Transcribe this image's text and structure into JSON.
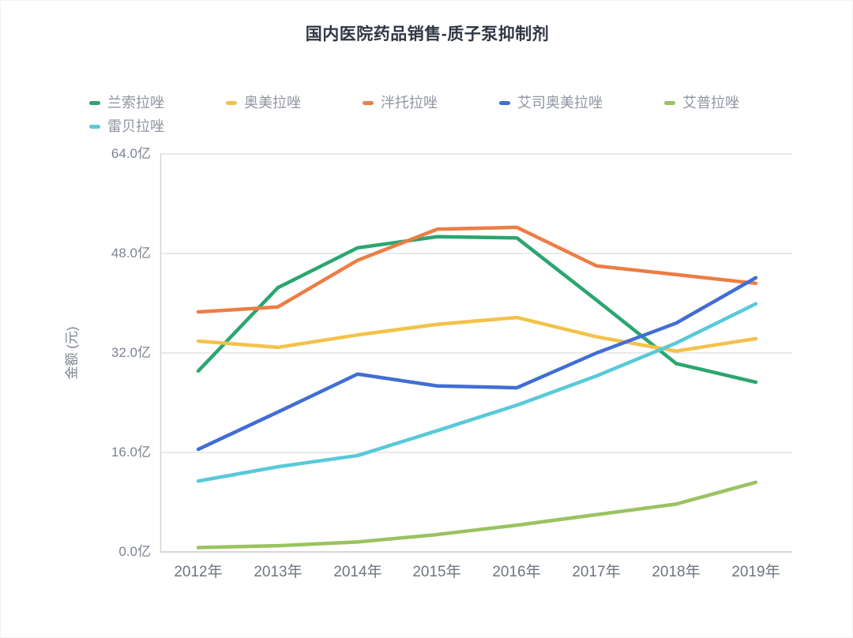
{
  "title": "国内医院药品销售-质子泵抑制剂",
  "chart_data": {
    "type": "line",
    "title": "国内医院药品销售-质子泵抑制剂",
    "xlabel": "",
    "ylabel": "金额 (元)",
    "unit": "亿元",
    "ylim": [
      0,
      64
    ],
    "ytick_values": [
      0,
      16,
      32,
      48,
      64
    ],
    "ytick_labels": [
      "0.0亿",
      "16.0亿",
      "32.0亿",
      "48.0亿",
      "64.0亿"
    ],
    "grid": "horizontal",
    "legend_position": "top-left",
    "categories": [
      "2012年",
      "2013年",
      "2014年",
      "2015年",
      "2016年",
      "2017年",
      "2018年",
      "2019年"
    ],
    "series": [
      {
        "name": "兰索拉唑",
        "color": "#2aa670",
        "values": [
          29.1,
          42.5,
          48.9,
          50.7,
          50.5,
          40.5,
          30.3,
          27.3
        ]
      },
      {
        "name": "奥美拉唑",
        "color": "#f2c24a",
        "values": [
          33.9,
          32.9,
          34.9,
          36.6,
          37.7,
          34.6,
          32.3,
          34.3
        ]
      },
      {
        "name": "泮托拉唑",
        "color": "#ec7d45",
        "values": [
          38.6,
          39.4,
          46.9,
          51.9,
          52.2,
          46.0,
          44.6,
          43.2
        ]
      },
      {
        "name": "艾司奥美拉唑",
        "color": "#416dd5",
        "values": [
          16.5,
          22.5,
          28.6,
          26.7,
          26.4,
          32.0,
          36.8,
          44.1
        ]
      },
      {
        "name": "艾普拉唑",
        "color": "#99c360",
        "values": [
          0.7,
          1.0,
          1.6,
          2.8,
          4.3,
          6.0,
          7.7,
          11.2
        ]
      },
      {
        "name": "雷贝拉唑",
        "color": "#58c9d9",
        "values": [
          11.4,
          13.7,
          15.5,
          19.5,
          23.6,
          28.3,
          33.6,
          39.9
        ]
      }
    ],
    "colors": {
      "grid_line": "#dcdee1",
      "axis_line": "#c6c8cc",
      "title_text": "#303744",
      "legend_text": "#8f95a0",
      "tick_text": "#7c8391"
    }
  }
}
